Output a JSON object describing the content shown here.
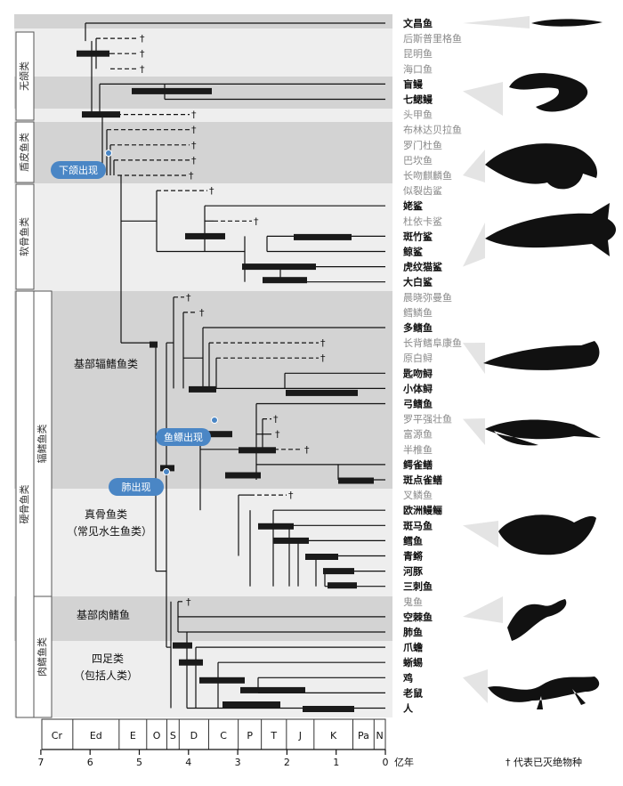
{
  "groups": {
    "agnatha": "无颌类",
    "placoderms": "盾皮鱼类",
    "chondrichthyes": "软骨鱼类",
    "osteichthyes": "硬骨鱼类",
    "actinopterygii": "辐鳍鱼类",
    "sarcopterygii": "肉鳍鱼类"
  },
  "bands": {
    "basal_ray": "基部辐鳍鱼类",
    "teleosts_1": "真骨鱼类",
    "teleosts_2": "（常见水生鱼类）",
    "basal_lobe": "基部肉鳍鱼",
    "tetrapods_1": "四足类",
    "tetrapods_2": "（包括人类）"
  },
  "events": {
    "jaws": "下颌出现",
    "swimbladder": "鱼鳔出现",
    "lungs": "肺出现"
  },
  "taxa": [
    {
      "name": "文昌鱼",
      "extinct": false
    },
    {
      "name": "后斯普里格鱼",
      "extinct": true
    },
    {
      "name": "昆明鱼",
      "extinct": true
    },
    {
      "name": "海口鱼",
      "extinct": true
    },
    {
      "name": "盲鳗",
      "extinct": false
    },
    {
      "name": "七鳃鳗",
      "extinct": false
    },
    {
      "name": "头甲鱼",
      "extinct": true
    },
    {
      "name": "布林达贝拉鱼",
      "extinct": true
    },
    {
      "name": "罗门杜鱼",
      "extinct": true
    },
    {
      "name": "巴坎鱼",
      "extinct": true
    },
    {
      "name": "长吻麒麟鱼",
      "extinct": true
    },
    {
      "name": "似裂齿鲨",
      "extinct": true
    },
    {
      "name": "姥鲨",
      "extinct": false
    },
    {
      "name": "杜依卡鲨",
      "extinct": true
    },
    {
      "name": "斑竹鲨",
      "extinct": false
    },
    {
      "name": "鲸鲨",
      "extinct": false
    },
    {
      "name": "虎纹猫鲨",
      "extinct": false
    },
    {
      "name": "大白鲨",
      "extinct": false
    },
    {
      "name": "晨晓弥曼鱼",
      "extinct": true
    },
    {
      "name": "鳕鳞鱼",
      "extinct": true
    },
    {
      "name": "多鳍鱼",
      "extinct": false
    },
    {
      "name": "长背鳍阜康鱼",
      "extinct": true
    },
    {
      "name": "原白鲟",
      "extinct": true
    },
    {
      "name": "匙吻鲟",
      "extinct": false
    },
    {
      "name": "小体鲟",
      "extinct": false
    },
    {
      "name": "弓鳍鱼",
      "extinct": false
    },
    {
      "name": "罗平强壮鱼",
      "extinct": true
    },
    {
      "name": "富源鱼",
      "extinct": true
    },
    {
      "name": "半椎鱼",
      "extinct": true
    },
    {
      "name": "鳄雀鳝",
      "extinct": false
    },
    {
      "name": "斑点雀鳝",
      "extinct": false
    },
    {
      "name": "叉鳞鱼",
      "extinct": true
    },
    {
      "name": "欧洲鳗鲡",
      "extinct": false
    },
    {
      "name": "斑马鱼",
      "extinct": false
    },
    {
      "name": "鳕鱼",
      "extinct": false
    },
    {
      "name": "青鳉",
      "extinct": false
    },
    {
      "name": "河豚",
      "extinct": false
    },
    {
      "name": "三刺鱼",
      "extinct": false
    },
    {
      "name": "鬼鱼",
      "extinct": true
    },
    {
      "name": "空棘鱼",
      "extinct": false
    },
    {
      "name": "肺鱼",
      "extinct": false
    },
    {
      "name": "爪蟾",
      "extinct": false
    },
    {
      "name": "蜥蜴",
      "extinct": false
    },
    {
      "name": "鸡",
      "extinct": false
    },
    {
      "name": "老鼠",
      "extinct": false
    },
    {
      "name": "人",
      "extinct": false
    }
  ],
  "periods": [
    "Cr",
    "Ed",
    "E",
    "O",
    "S",
    "D",
    "C",
    "P",
    "T",
    "J",
    "K",
    "Pa",
    "N"
  ],
  "axis": {
    "ticks": [
      "7",
      "6",
      "5",
      "4",
      "3",
      "2",
      "1",
      "0"
    ],
    "unit": "亿年"
  },
  "legend": "† 代表已灭绝物种",
  "dagger": "†",
  "colors": {
    "band_dark": "#d3d3d3",
    "band_light": "#eeeeee",
    "event_blue": "#4a86c5",
    "extinct_text": "#8a8a8a",
    "living_text": "#111111",
    "silhouette": "#111111"
  },
  "icons": [
    "lancelet-icon",
    "lamprey-icon",
    "placoderm-icon",
    "shark-icon",
    "bichir-icon",
    "paddlefish-icon",
    "zebrafish-icon",
    "lungfish-icon",
    "lizard-icon"
  ]
}
